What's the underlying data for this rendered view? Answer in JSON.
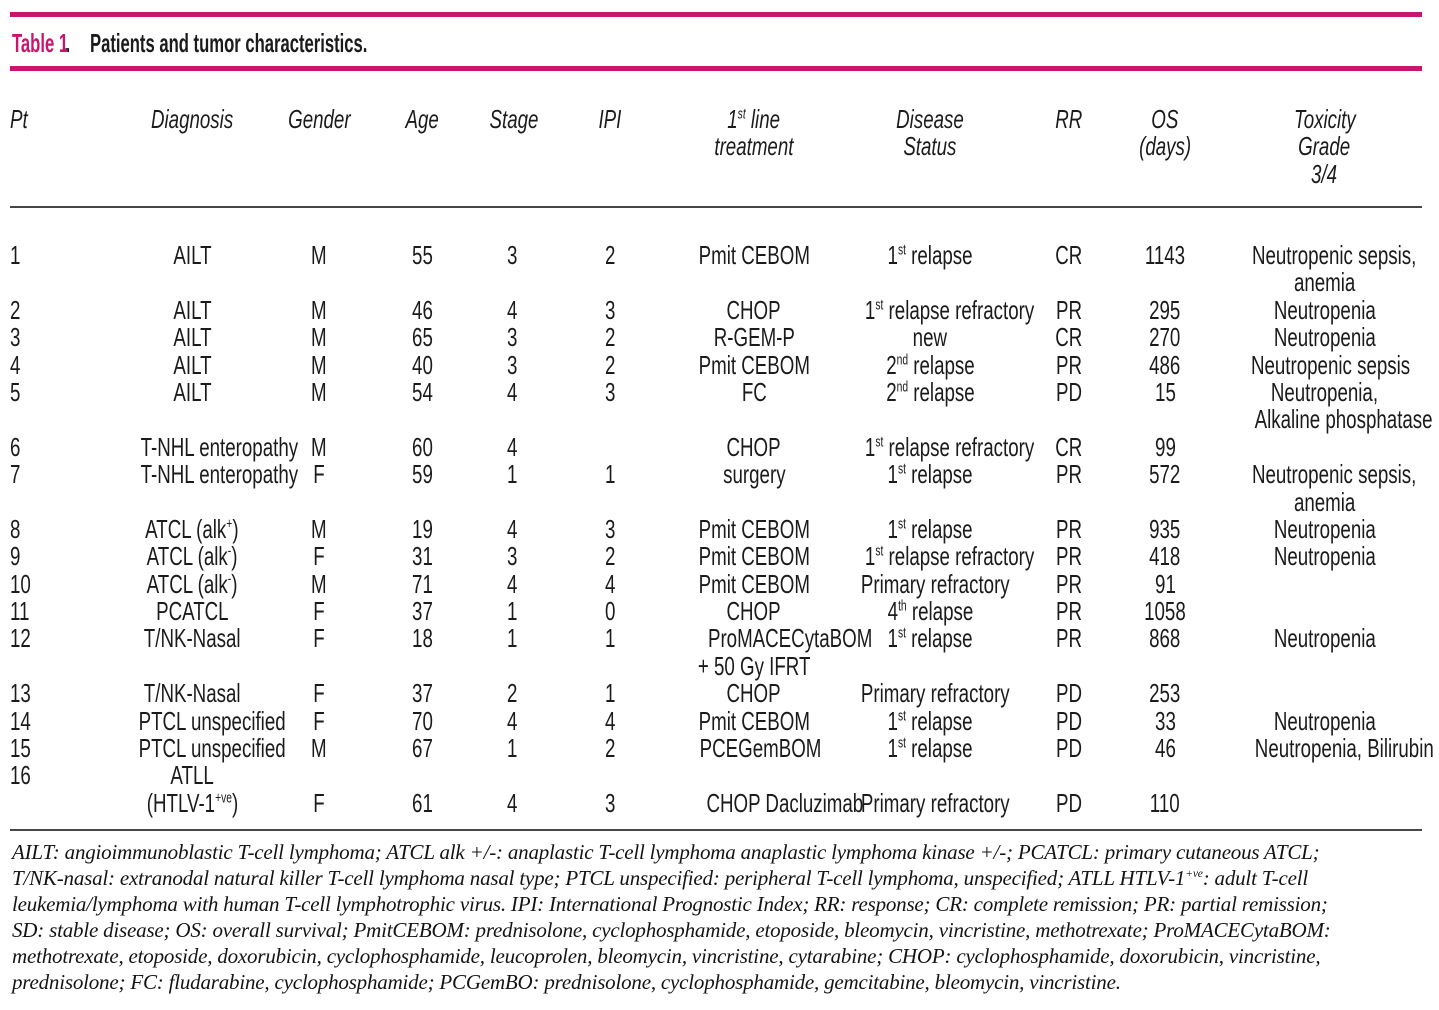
{
  "meta": {
    "accent_color": "#c8156d",
    "rule_color": "#474747",
    "text_color": "#1b1b1b"
  },
  "title": {
    "label": "Table 1",
    "dot": ".",
    "text": "Patients and tumor characteristics."
  },
  "table": {
    "columns": [
      {
        "id": "pt",
        "align": "left",
        "lines": [
          "Pt"
        ]
      },
      {
        "id": "diagnosis",
        "lines": [
          "Diagnosis"
        ]
      },
      {
        "id": "gender",
        "lines": [
          "Gender"
        ]
      },
      {
        "id": "age",
        "lines": [
          "Age"
        ]
      },
      {
        "id": "stage",
        "lines": [
          "Stage"
        ]
      },
      {
        "id": "ipi",
        "lines": [
          "IPI"
        ]
      },
      {
        "id": "first-line-treatment",
        "lines": [
          "1^{st} line",
          "treatment"
        ]
      },
      {
        "id": "disease-status",
        "lines": [
          "Disease",
          "Status"
        ]
      },
      {
        "id": "rr",
        "lines": [
          "RR"
        ]
      },
      {
        "id": "os-days",
        "lines": [
          "OS",
          "(days)"
        ]
      },
      {
        "id": "toxicity-grade",
        "lines": [
          "Toxicity",
          "Grade",
          "3/4"
        ]
      }
    ],
    "rows": [
      [
        [
          "1"
        ],
        [
          "AILT"
        ],
        [
          "M"
        ],
        [
          "55"
        ],
        [
          "3"
        ],
        [
          "2"
        ],
        [
          "Pmit CEBOM"
        ],
        [
          "1^{st} relapse"
        ],
        [
          "CR"
        ],
        [
          "1143"
        ],
        [
          "Neutropenic sepsis,",
          "anemia"
        ]
      ],
      [
        [
          "2"
        ],
        [
          "AILT"
        ],
        [
          "M"
        ],
        [
          "46"
        ],
        [
          "4"
        ],
        [
          "3"
        ],
        [
          "CHOP"
        ],
        [
          "1^{st} relapse refractory"
        ],
        [
          "PR"
        ],
        [
          "295"
        ],
        [
          "Neutropenia"
        ]
      ],
      [
        [
          "3"
        ],
        [
          "AILT"
        ],
        [
          "M"
        ],
        [
          "65"
        ],
        [
          "3"
        ],
        [
          "2"
        ],
        [
          "R-GEM-P"
        ],
        [
          "new"
        ],
        [
          "CR"
        ],
        [
          "270"
        ],
        [
          "Neutropenia"
        ]
      ],
      [
        [
          "4"
        ],
        [
          "AILT"
        ],
        [
          "M"
        ],
        [
          "40"
        ],
        [
          "3"
        ],
        [
          "2"
        ],
        [
          "Pmit CEBOM"
        ],
        [
          "2^{nd} relapse"
        ],
        [
          "PR"
        ],
        [
          "486"
        ],
        [
          "Neutropenic sepsis"
        ]
      ],
      [
        [
          "5"
        ],
        [
          "AILT"
        ],
        [
          "M"
        ],
        [
          "54"
        ],
        [
          "4"
        ],
        [
          "3"
        ],
        [
          "FC"
        ],
        [
          "2^{nd} relapse"
        ],
        [
          "PD"
        ],
        [
          "15"
        ],
        [
          "Neutropenia,",
          "Alkaline phosphatase"
        ]
      ],
      [
        [
          "6"
        ],
        [
          "T-NHL enteropathy"
        ],
        [
          "M"
        ],
        [
          "60"
        ],
        [
          "4"
        ],
        [
          ""
        ],
        [
          "CHOP"
        ],
        [
          "1^{st} relapse refractory"
        ],
        [
          "CR"
        ],
        [
          "99"
        ],
        [
          ""
        ]
      ],
      [
        [
          "7"
        ],
        [
          "T-NHL enteropathy"
        ],
        [
          "F"
        ],
        [
          "59"
        ],
        [
          "1"
        ],
        [
          "1"
        ],
        [
          "surgery"
        ],
        [
          "1^{st} relapse"
        ],
        [
          "PR"
        ],
        [
          "572"
        ],
        [
          "Neutropenic sepsis,",
          "anemia"
        ]
      ],
      [
        [
          "8"
        ],
        [
          "ATCL (alk^{+})"
        ],
        [
          "M"
        ],
        [
          "19"
        ],
        [
          "4"
        ],
        [
          "3"
        ],
        [
          "Pmit CEBOM"
        ],
        [
          "1^{st} relapse"
        ],
        [
          "PR"
        ],
        [
          "935"
        ],
        [
          "Neutropenia"
        ]
      ],
      [
        [
          "9"
        ],
        [
          "ATCL (alk^{-})"
        ],
        [
          "F"
        ],
        [
          "31"
        ],
        [
          "3"
        ],
        [
          "2"
        ],
        [
          "Pmit CEBOM"
        ],
        [
          "1^{st} relapse refractory"
        ],
        [
          "PR"
        ],
        [
          "418"
        ],
        [
          "Neutropenia"
        ]
      ],
      [
        [
          "10"
        ],
        [
          "ATCL (alk^{-})"
        ],
        [
          "M"
        ],
        [
          "71"
        ],
        [
          "4"
        ],
        [
          "4"
        ],
        [
          "Pmit CEBOM"
        ],
        [
          "Primary refractory"
        ],
        [
          "PR"
        ],
        [
          "91"
        ],
        [
          ""
        ]
      ],
      [
        [
          "11"
        ],
        [
          "PCATCL"
        ],
        [
          "F"
        ],
        [
          "37"
        ],
        [
          "1"
        ],
        [
          "0"
        ],
        [
          "CHOP"
        ],
        [
          "4^{th} relapse"
        ],
        [
          "PR"
        ],
        [
          "1058"
        ],
        [
          ""
        ]
      ],
      [
        [
          "12"
        ],
        [
          "T/NK-Nasal"
        ],
        [
          "F"
        ],
        [
          "18"
        ],
        [
          "1"
        ],
        [
          "1"
        ],
        [
          "ProMACECytaBOM",
          "+ 50 Gy IFRT"
        ],
        [
          "1^{st} relapse"
        ],
        [
          "PR"
        ],
        [
          "868"
        ],
        [
          "Neutropenia"
        ]
      ],
      [
        [
          "13"
        ],
        [
          "T/NK-Nasal"
        ],
        [
          "F"
        ],
        [
          "37"
        ],
        [
          "2"
        ],
        [
          "1"
        ],
        [
          "CHOP"
        ],
        [
          "Primary refractory"
        ],
        [
          "PD"
        ],
        [
          "253"
        ],
        [
          ""
        ]
      ],
      [
        [
          "14"
        ],
        [
          "PTCL unspecified"
        ],
        [
          "F"
        ],
        [
          "70"
        ],
        [
          "4"
        ],
        [
          "4"
        ],
        [
          "Pmit CEBOM"
        ],
        [
          "1^{st} relapse"
        ],
        [
          "PD"
        ],
        [
          "33"
        ],
        [
          "Neutropenia"
        ]
      ],
      [
        [
          "15"
        ],
        [
          "PTCL unspecified"
        ],
        [
          "M"
        ],
        [
          "67"
        ],
        [
          "1"
        ],
        [
          "2"
        ],
        [
          "PCEGemBOM"
        ],
        [
          "1^{st} relapse"
        ],
        [
          "PD"
        ],
        [
          "46"
        ],
        [
          "Neutropenia, Bilirubin"
        ]
      ],
      [
        [
          "16"
        ],
        [
          "ATLL",
          "(HTLV-1^{+ve})"
        ],
        [
          "",
          "F"
        ],
        [
          "",
          "61"
        ],
        [
          "",
          "4"
        ],
        [
          "",
          "3"
        ],
        [
          "",
          "CHOP Dacluzimab"
        ],
        [
          "",
          "Primary refractory"
        ],
        [
          "",
          "PD"
        ],
        [
          "",
          "110"
        ],
        [
          ""
        ]
      ]
    ]
  },
  "footnotes": {
    "lines": [
      "AILT: angioimmunoblastic T-cell lymphoma; ATCL alk +/-: anaplastic T-cell lymphoma anaplastic lymphoma kinase +/-; PCATCL: primary cutaneous ATCL;",
      "T/NK-nasal: extranodal natural killer T-cell lymphoma nasal type; PTCL unspecified: peripheral T-cell lymphoma, unspecified; ATLL HTLV-1^{+ve}: adult T-cell",
      "leukemia/lymphoma with human T-cell lymphotrophic virus. IPI: International Prognostic Index; RR: response; CR: complete remission; PR: partial remission;",
      "SD: stable disease; OS: overall survival; PmitCEBOM: prednisolone, cyclophosphamide, etoposide, bleomycin, vincristine, methotrexate; ProMACECytaBOM:",
      "methotrexate, etoposide, doxorubicin, cyclophosphamide, leucoprolen, bleomycin, vincristine, cytarabine; CHOP: cyclophosphamide, doxorubicin, vincristine,",
      "prednisolone; FC: fludarabine, cyclophosphamide; PCGemBO: prednisolone, cyclophosphamide, gemcitabine, bleomycin, vincristine."
    ]
  }
}
